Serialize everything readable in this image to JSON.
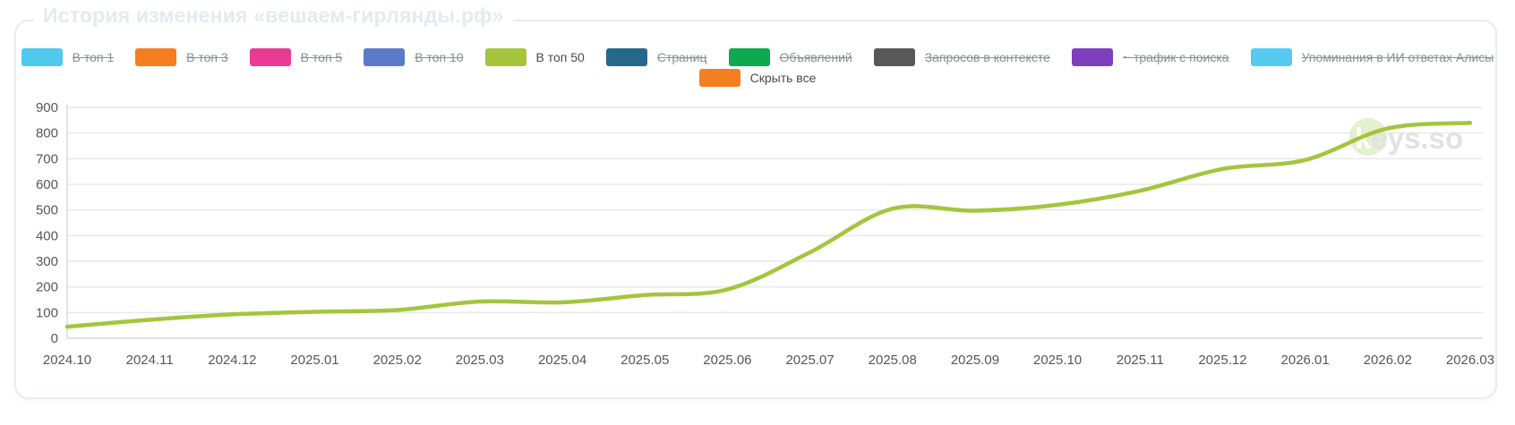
{
  "title": "История изменения «вешаем-гирлянды.рф»",
  "watermark": "keys.so",
  "legend": {
    "items": [
      {
        "label": "В топ 1",
        "color": "#4fc9ee",
        "disabled": true
      },
      {
        "label": "В топ 3",
        "color": "#f47e20",
        "disabled": true
      },
      {
        "label": "В топ 5",
        "color": "#e93a94",
        "disabled": true
      },
      {
        "label": "В топ 10",
        "color": "#5b7ac9",
        "disabled": true
      },
      {
        "label": "В топ 50",
        "color": "#a4c53c",
        "disabled": false
      },
      {
        "label": "Страниц",
        "color": "#25688a",
        "disabled": true
      },
      {
        "label": "Объявлений",
        "color": "#0ea84e",
        "disabled": true
      },
      {
        "label": "Запросов в контексте",
        "color": "#585858",
        "disabled": true
      },
      {
        "label": "~ трафик с поиска",
        "color": "#7d3fbd",
        "disabled": true
      },
      {
        "label": "Упоминания в ИИ ответах Алисы",
        "color": "#55cbf2",
        "disabled": true
      }
    ],
    "hide_all": {
      "label": "Скрыть все",
      "color": "#f47e20",
      "disabled": false
    }
  },
  "chart_data": {
    "type": "line",
    "x": [
      "2024.10",
      "2024.11",
      "2024.12",
      "2025.01",
      "2025.02",
      "2025.03",
      "2025.04",
      "2025.05",
      "2025.06",
      "2025.07",
      "2025.08",
      "2025.09",
      "2025.10",
      "2025.11",
      "2025.12",
      "2026.01",
      "2026.02",
      "2026.03"
    ],
    "series": [
      {
        "name": "В топ 50",
        "color": "#a4c53c",
        "values": [
          45,
          72,
          93,
          103,
          110,
          143,
          140,
          168,
          190,
          335,
          505,
          497,
          520,
          575,
          660,
          695,
          818,
          840
        ]
      }
    ],
    "ylim": [
      0,
      900
    ],
    "ytick_step": 100,
    "grid": true,
    "legend_position": "top",
    "line_smooth": true
  },
  "colors": {
    "grid": "#e9e9e9",
    "axis_line": "#d8dbde",
    "tick_text": "#55575a",
    "watermark_text": "#dfdfdf",
    "watermark_circle": "#e2efca"
  }
}
